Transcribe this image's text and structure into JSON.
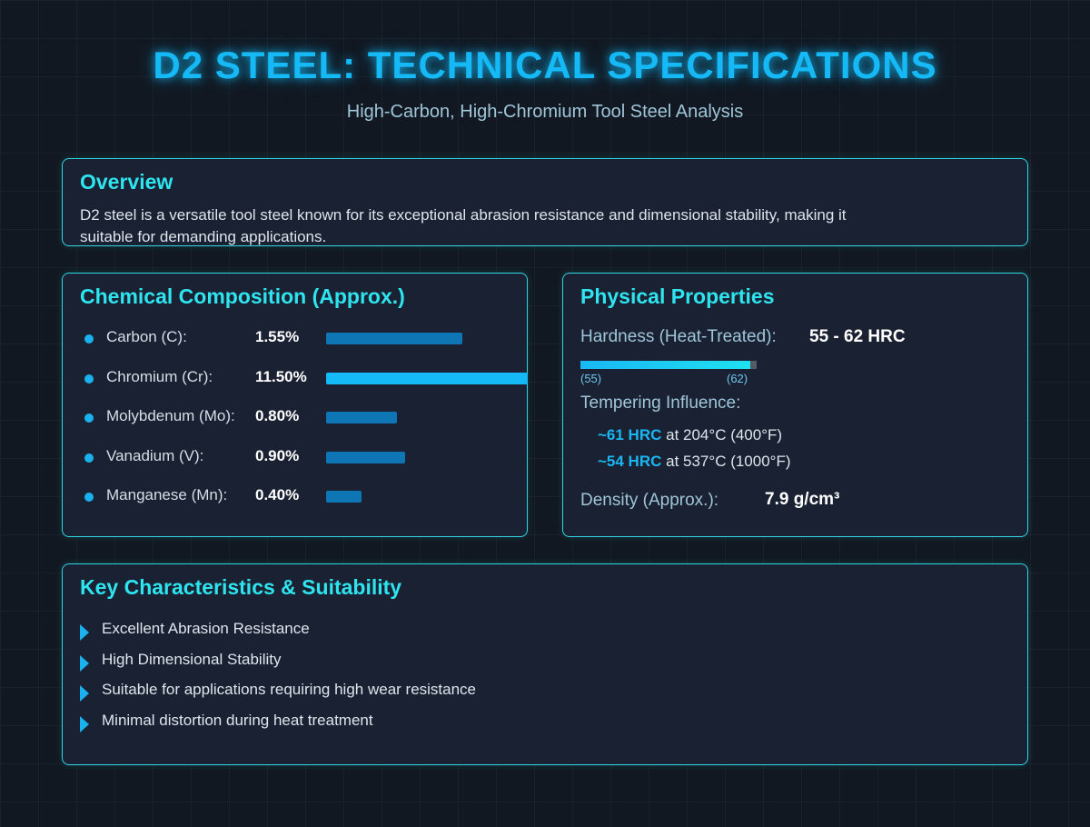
{
  "header": {
    "title": "D2 STEEL: TECHNICAL SPECIFICATIONS",
    "subtitle": "High-Carbon, High-Chromium Tool Steel Analysis"
  },
  "overview": {
    "title": "Overview",
    "text": "D2 steel is a versatile tool steel known for its exceptional abrasion resistance and dimensional stability, making it suitable for demanding applications."
  },
  "composition": {
    "title": "Chemical Composition (Approx.)",
    "items": [
      {
        "label": "Carbon (C):",
        "value": "1.55%",
        "percent": 1.55
      },
      {
        "label": "Chromium (Cr):",
        "value": "11.50%",
        "percent": 11.5
      },
      {
        "label": "Molybdenum (Mo):",
        "value": "0.80%",
        "percent": 0.8
      },
      {
        "label": "Vanadium (V):",
        "value": "0.90%",
        "percent": 0.9
      },
      {
        "label": "Manganese (Mn):",
        "value": "0.40%",
        "percent": 0.4
      }
    ]
  },
  "physical": {
    "title": "Physical Properties",
    "hardness_label": "Hardness (Heat-Treated):",
    "hardness_value": "55 - 62 HRC",
    "hardness_min_label": "(55)",
    "hardness_max_label": "(62)",
    "hardness_min": 55,
    "hardness_max": 62,
    "tempering_label": "Tempering Influence:",
    "tempering": [
      {
        "hrc": "~61 HRC",
        "condition": "at 204°C (400°F)"
      },
      {
        "hrc": "~54 HRC",
        "condition": "at 537°C (1000°F)"
      }
    ],
    "density_label": "Density (Approx.):",
    "density_value": "7.9 g/cm³"
  },
  "characteristics": {
    "title": "Key Characteristics & Suitability",
    "items": [
      "Excellent Abrasion Resistance",
      "High Dimensional Stability",
      "Suitable for applications requiring high wear resistance",
      "Minimal distortion during heat treatment"
    ]
  },
  "colors": {
    "accent": "#14b9f6",
    "heading": "#2ee5ef",
    "border": "#2fd6e2",
    "card": "#192133",
    "background": "#121821"
  }
}
